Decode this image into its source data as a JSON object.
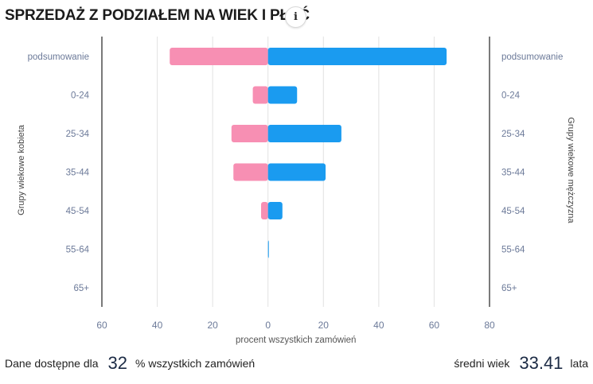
{
  "header": {
    "title": "SPRZEDAŻ Z PODZIAŁEM NA WIEK I PŁEĆ",
    "info_icon": "info-icon"
  },
  "chart_data": {
    "type": "bar",
    "orientation": "horizontal-diverging",
    "categories": [
      "podsumowanie",
      "0-24",
      "25-34",
      "35-44",
      "45-54",
      "55-64",
      "65+"
    ],
    "series": [
      {
        "name": "kobieta",
        "color": "#f78fb3",
        "values": [
          -35.5,
          -5.5,
          -13.2,
          -12.5,
          -2.5,
          0,
          0
        ]
      },
      {
        "name": "mężczyzna",
        "color": "#1a9bf0",
        "values": [
          64.5,
          10.5,
          26.5,
          20.8,
          5.2,
          0.3,
          0
        ]
      }
    ],
    "x_ticks": [
      "60",
      "40",
      "20",
      "0",
      "20",
      "40",
      "60",
      "80"
    ],
    "xlim": [
      -60,
      80
    ],
    "xlabel": "procent wszystkich zamówień",
    "ylabel_left": "Grupy wiekowe kobieta",
    "ylabel_right": "Grupy wiekowe mężczyzna",
    "grid": true
  },
  "footer": {
    "available_prefix": "Dane dostępne dla",
    "available_value": "32",
    "available_suffix": "% wszystkich zamówień",
    "avg_age_label": "średni wiek",
    "avg_age_value": "33.41",
    "avg_age_unit": "lata"
  },
  "colors": {
    "tick_label": "#6c7a99",
    "grid": "#e2e2e2",
    "axis": "#222222"
  }
}
